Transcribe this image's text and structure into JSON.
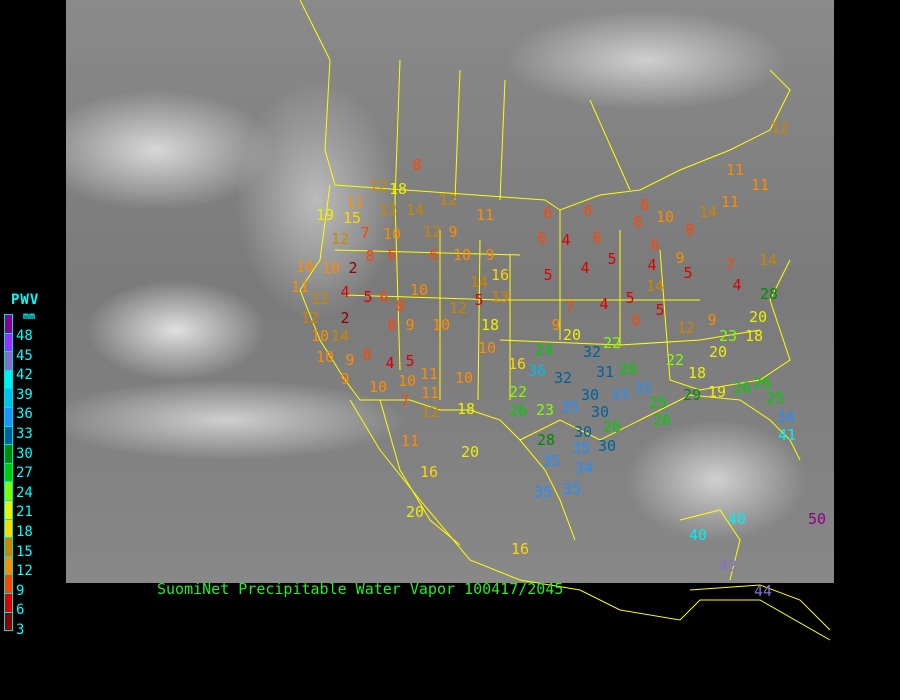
{
  "legend": {
    "title": "PWV",
    "unit": "mm",
    "labels": [
      "48",
      "45",
      "42",
      "39",
      "36",
      "33",
      "30",
      "27",
      "24",
      "21",
      "18",
      "15",
      "12",
      "9",
      "6",
      "3"
    ],
    "colors": [
      "#8b008b",
      "#9b30ff",
      "#8470cc",
      "#00f0f0",
      "#00bfe8",
      "#1e90ff",
      "#00609a",
      "#008b00",
      "#00cd00",
      "#7fff00",
      "#eeee00",
      "#ffd700",
      "#cd8500",
      "#ff8c00",
      "#ff4500",
      "#dd0000",
      "#8b0000"
    ]
  },
  "caption": "SuomiNet Precipitable Water Vapor 100417/2045",
  "colors": {
    "borders": "#ffff00",
    "caption": "#22ee22",
    "legend_text": "#00ffff"
  },
  "stations": [
    "8",
    "12",
    "18",
    "11",
    "12",
    "14",
    "12",
    "11",
    "19",
    "15",
    "12",
    "7",
    "10",
    "12",
    "9",
    "6",
    "6",
    "6",
    "4",
    "6",
    "10",
    "10",
    "2",
    "8",
    "6",
    "6",
    "10",
    "9",
    "16",
    "14",
    "11",
    "12",
    "4",
    "5",
    "6",
    "8",
    "10",
    "12",
    "5",
    "13",
    "12",
    "2",
    "8",
    "9",
    "10",
    "18",
    "10",
    "14",
    "10",
    "10",
    "9",
    "8",
    "4",
    "5",
    "11",
    "10",
    "9",
    "10",
    "10",
    "7",
    "11",
    "12",
    "18",
    "11",
    "16",
    "20",
    "20",
    "16",
    "5",
    "4",
    "5",
    "4",
    "9",
    "5",
    "7",
    "4",
    "14",
    "7",
    "4",
    "5",
    "14",
    "5",
    "6",
    "9",
    "20",
    "22",
    "12",
    "9",
    "23",
    "20",
    "18",
    "28",
    "20",
    "22",
    "18",
    "16",
    "24",
    "32",
    "36",
    "32",
    "22",
    "31",
    "26",
    "35",
    "30",
    "33",
    "26",
    "23",
    "35",
    "30",
    "30",
    "26",
    "25",
    "26",
    "30",
    "29",
    "19",
    "26",
    "26",
    "25",
    "34",
    "41",
    "28",
    "35",
    "35",
    "34",
    "35",
    "35",
    "40",
    "40",
    "50",
    "43",
    "44",
    "12",
    "11",
    "11",
    "14",
    "6",
    "10",
    "8",
    "11",
    "6",
    "6"
  ]
}
